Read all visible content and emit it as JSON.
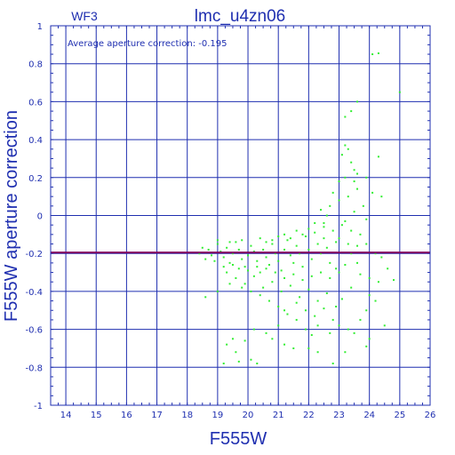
{
  "chart_data": {
    "type": "scatter",
    "title": "lmc_u4zn06",
    "panel_label": "WF3",
    "annotation": "Average aperture correction: -0.195",
    "xlabel": "F555W",
    "ylabel": "F555W aperture correction",
    "xlim": [
      13.5,
      26
    ],
    "ylim": [
      -1,
      1
    ],
    "x_ticks": [
      14,
      15,
      16,
      17,
      18,
      19,
      20,
      21,
      22,
      23,
      24,
      25,
      26
    ],
    "y_ticks": [
      -1,
      -0.8,
      -0.6,
      -0.4,
      -0.2,
      0,
      0.2,
      0.4,
      0.6,
      0.8,
      1
    ],
    "y_tick_labels": [
      "-1",
      "-0.8",
      "-0.6",
      "-0.4",
      "-0.2",
      "0",
      "0.2",
      "0.4",
      "0.6",
      "0.8",
      "1"
    ],
    "grid": true,
    "reference_line": {
      "y": -0.195,
      "color": "#800060"
    },
    "colors": {
      "axes": "#1f2fb0",
      "points": "#33ee33",
      "line": "#800060"
    },
    "series": [
      {
        "points": [
          [
            24.1,
            0.85
          ],
          [
            24.3,
            0.855
          ],
          [
            25.0,
            0.65
          ],
          [
            23.6,
            0.6
          ],
          [
            23.4,
            0.55
          ],
          [
            23.2,
            0.52
          ],
          [
            23.2,
            0.37
          ],
          [
            23.3,
            0.35
          ],
          [
            23.1,
            0.32
          ],
          [
            23.4,
            0.28
          ],
          [
            24.3,
            0.31
          ],
          [
            23.5,
            0.24
          ],
          [
            23.2,
            0.2
          ],
          [
            23.5,
            0.18
          ],
          [
            23.6,
            0.22
          ],
          [
            23.9,
            0.2
          ],
          [
            24.4,
            0.1
          ],
          [
            24.1,
            0.12
          ],
          [
            23.0,
            0.18
          ],
          [
            22.8,
            0.12
          ],
          [
            22.7,
            0.05
          ],
          [
            23.0,
            0.08
          ],
          [
            23.3,
            0.1
          ],
          [
            23.6,
            0.14
          ],
          [
            23.8,
            0.05
          ],
          [
            23.9,
            -0.02
          ],
          [
            22.4,
            0.03
          ],
          [
            22.6,
            0.0
          ],
          [
            22.5,
            -0.04
          ],
          [
            23.1,
            -0.05
          ],
          [
            23.4,
            -0.08
          ],
          [
            23.7,
            -0.1
          ],
          [
            23.9,
            -0.15
          ],
          [
            24.2,
            -0.2
          ],
          [
            24.4,
            -0.22
          ],
          [
            23.6,
            -0.25
          ],
          [
            24.6,
            -0.28
          ],
          [
            24.0,
            -0.33
          ],
          [
            24.3,
            -0.35
          ],
          [
            24.8,
            -0.34
          ],
          [
            24.0,
            -0.42
          ],
          [
            24.2,
            -0.45
          ],
          [
            23.9,
            -0.5
          ],
          [
            24.5,
            -0.58
          ],
          [
            23.7,
            -0.55
          ],
          [
            23.5,
            -0.62
          ],
          [
            23.3,
            -0.6
          ],
          [
            23.0,
            -0.58
          ],
          [
            22.8,
            -0.55
          ],
          [
            22.7,
            -0.62
          ],
          [
            22.3,
            -0.58
          ],
          [
            22.1,
            -0.63
          ],
          [
            21.9,
            -0.6
          ],
          [
            21.6,
            -0.55
          ],
          [
            21.2,
            -0.5
          ],
          [
            21.0,
            -0.58
          ],
          [
            20.8,
            -0.65
          ],
          [
            20.6,
            -0.62
          ],
          [
            20.2,
            -0.6
          ],
          [
            19.9,
            -0.66
          ],
          [
            19.5,
            -0.65
          ],
          [
            19.3,
            -0.68
          ],
          [
            19.6,
            -0.72
          ],
          [
            19.7,
            -0.77
          ],
          [
            19.2,
            -0.78
          ],
          [
            20.1,
            -0.76
          ],
          [
            20.3,
            -0.78
          ],
          [
            21.2,
            -0.68
          ],
          [
            21.5,
            -0.7
          ],
          [
            22.0,
            -0.7
          ],
          [
            22.3,
            -0.72
          ],
          [
            22.8,
            -0.78
          ],
          [
            23.2,
            -0.72
          ],
          [
            23.9,
            -0.69
          ],
          [
            24.0,
            -0.65
          ],
          [
            18.6,
            -0.43
          ],
          [
            19.0,
            -0.4
          ],
          [
            19.4,
            -0.36
          ],
          [
            18.4,
            -0.2
          ],
          [
            18.5,
            -0.17
          ],
          [
            18.7,
            -0.18
          ],
          [
            18.8,
            -0.21
          ],
          [
            18.9,
            -0.24
          ],
          [
            18.6,
            -0.23
          ],
          [
            19.0,
            -0.15
          ],
          [
            19.1,
            -0.19
          ],
          [
            19.2,
            -0.22
          ],
          [
            19.3,
            -0.17
          ],
          [
            19.4,
            -0.25
          ],
          [
            19.5,
            -0.2
          ],
          [
            19.6,
            -0.14
          ],
          [
            19.7,
            -0.18
          ],
          [
            19.8,
            -0.23
          ],
          [
            19.9,
            -0.27
          ],
          [
            20.0,
            -0.21
          ],
          [
            20.1,
            -0.16
          ],
          [
            20.2,
            -0.19
          ],
          [
            20.3,
            -0.24
          ],
          [
            20.4,
            -0.3
          ],
          [
            20.5,
            -0.18
          ],
          [
            20.6,
            -0.22
          ],
          [
            20.7,
            -0.26
          ],
          [
            20.8,
            -0.15
          ],
          [
            20.9,
            -0.2
          ],
          [
            21.0,
            -0.24
          ],
          [
            21.1,
            -0.29
          ],
          [
            21.2,
            -0.18
          ],
          [
            21.3,
            -0.13
          ],
          [
            21.4,
            -0.21
          ],
          [
            21.5,
            -0.25
          ],
          [
            21.6,
            -0.16
          ],
          [
            21.7,
            -0.2
          ],
          [
            21.8,
            -0.27
          ],
          [
            21.9,
            -0.11
          ],
          [
            22.0,
            -0.18
          ],
          [
            22.1,
            -0.23
          ],
          [
            22.2,
            -0.09
          ],
          [
            22.3,
            -0.15
          ],
          [
            22.4,
            -0.2
          ],
          [
            22.5,
            -0.12
          ],
          [
            22.6,
            -0.17
          ],
          [
            22.7,
            -0.25
          ],
          [
            22.8,
            -0.08
          ],
          [
            22.9,
            -0.14
          ],
          [
            22.5,
            -0.06
          ],
          [
            22.2,
            -0.04
          ],
          [
            22.0,
            -0.07
          ],
          [
            21.8,
            -0.1
          ],
          [
            21.6,
            -0.08
          ],
          [
            21.4,
            -0.12
          ],
          [
            21.2,
            -0.1
          ],
          [
            21.0,
            -0.11
          ],
          [
            20.8,
            -0.13
          ],
          [
            20.6,
            -0.14
          ],
          [
            20.4,
            -0.12
          ],
          [
            19.8,
            -0.13
          ],
          [
            19.4,
            -0.14
          ],
          [
            19.0,
            -0.13
          ],
          [
            19.3,
            -0.3
          ],
          [
            19.6,
            -0.33
          ],
          [
            19.9,
            -0.36
          ],
          [
            20.2,
            -0.32
          ],
          [
            20.5,
            -0.38
          ],
          [
            20.8,
            -0.35
          ],
          [
            21.1,
            -0.4
          ],
          [
            21.4,
            -0.37
          ],
          [
            21.7,
            -0.43
          ],
          [
            22.0,
            -0.39
          ],
          [
            22.3,
            -0.45
          ],
          [
            22.6,
            -0.41
          ],
          [
            22.9,
            -0.48
          ],
          [
            23.1,
            -0.44
          ],
          [
            23.4,
            -0.38
          ],
          [
            23.7,
            -0.31
          ],
          [
            21.0,
            -0.48
          ],
          [
            21.3,
            -0.52
          ],
          [
            21.6,
            -0.46
          ],
          [
            21.9,
            -0.5
          ],
          [
            22.2,
            -0.53
          ],
          [
            22.5,
            -0.49
          ],
          [
            20.7,
            -0.45
          ],
          [
            20.4,
            -0.42
          ],
          [
            20.1,
            -0.4
          ],
          [
            19.8,
            -0.38
          ],
          [
            23.0,
            -0.3
          ],
          [
            23.2,
            -0.26
          ],
          [
            23.4,
            -0.2
          ],
          [
            23.6,
            -0.16
          ],
          [
            23.0,
            -0.12
          ],
          [
            23.2,
            -0.03
          ],
          [
            23.5,
            0.02
          ],
          [
            23.3,
            -0.15
          ],
          [
            22.9,
            -0.28
          ],
          [
            22.7,
            -0.33
          ],
          [
            22.4,
            -0.3
          ],
          [
            22.1,
            -0.32
          ],
          [
            21.8,
            -0.34
          ],
          [
            21.5,
            -0.31
          ],
          [
            21.2,
            -0.33
          ],
          [
            20.9,
            -0.3
          ],
          [
            20.6,
            -0.28
          ],
          [
            20.3,
            -0.27
          ],
          [
            20.0,
            -0.29
          ],
          [
            19.7,
            -0.28
          ],
          [
            19.5,
            -0.26
          ],
          [
            19.2,
            -0.27
          ]
        ]
      }
    ]
  }
}
